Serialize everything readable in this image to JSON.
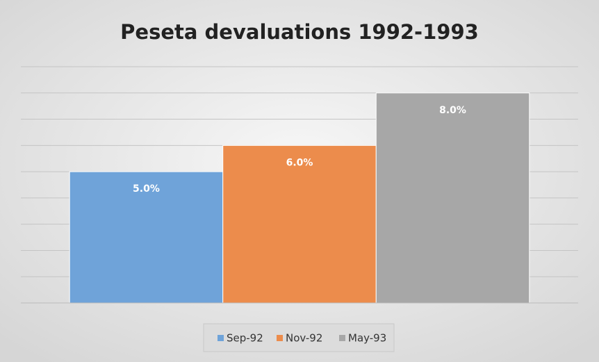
{
  "chart_data": {
    "type": "bar",
    "title": "Peseta devaluations 1992-1993",
    "categories": [
      null
    ],
    "series": [
      {
        "name": "Sep-92",
        "color": "#6fa3d9",
        "values": [
          5
        ],
        "value_labels": [
          "5.0%"
        ]
      },
      {
        "name": "Nov-92",
        "color": "#ec8c4c",
        "values": [
          6
        ],
        "value_labels": [
          "6.0%"
        ]
      },
      {
        "name": "May-93",
        "color": "#a7a7a7",
        "values": [
          8
        ],
        "value_labels": [
          "8.0%"
        ]
      }
    ],
    "ylim": [
      0,
      9
    ],
    "yticks": [
      0,
      1,
      2,
      3,
      4,
      5,
      6,
      7,
      8,
      9
    ],
    "grid": true,
    "legend": "bottom"
  }
}
